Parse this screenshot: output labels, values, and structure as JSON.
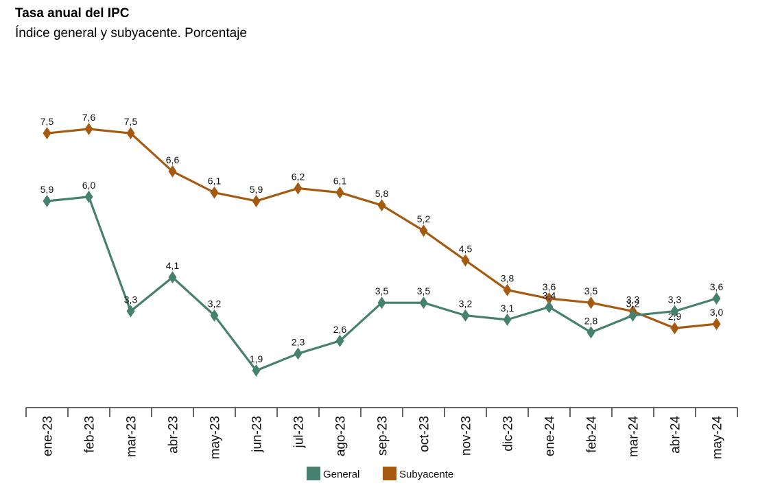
{
  "chart_data": {
    "type": "line",
    "title": "Tasa anual del IPC",
    "subtitle": "Índice general y subyacente. Porcentaje",
    "categories": [
      "ene-23",
      "feb-23",
      "mar-23",
      "abr-23",
      "may-23",
      "jun-23",
      "jul-23",
      "ago-23",
      "sep-23",
      "oct-23",
      "nov-23",
      "dic-23",
      "ene-24",
      "feb-24",
      "mar-24",
      "abr-24",
      "may-24"
    ],
    "series": [
      {
        "name": "General",
        "color": "#46806f",
        "values": [
          5.9,
          6.0,
          3.3,
          4.1,
          3.2,
          1.9,
          2.3,
          2.6,
          3.5,
          3.5,
          3.2,
          3.1,
          3.4,
          2.8,
          3.2,
          3.3,
          3.6
        ],
        "labels": [
          "5,9",
          "6,0",
          "3,3",
          "4,1",
          "3,2",
          "1,9",
          "2,3",
          "2,6",
          "3,5",
          "3,5",
          "3,2",
          "3,1",
          "3,4",
          "2,8",
          "3,2",
          "3,3",
          "3,6"
        ]
      },
      {
        "name": "Subyacente",
        "color": "#a65a0f",
        "values": [
          7.5,
          7.6,
          7.5,
          6.6,
          6.1,
          5.9,
          6.2,
          6.1,
          5.8,
          5.2,
          4.5,
          3.8,
          3.6,
          3.5,
          3.3,
          2.9,
          3.0
        ],
        "labels": [
          "7,5",
          "7,6",
          "7,5",
          "6,6",
          "6,1",
          "5,9",
          "6,2",
          "6,1",
          "5,8",
          "5,2",
          "4,5",
          "3,8",
          "3,6",
          "3,5",
          "3,3",
          "2,9",
          "3,0"
        ]
      }
    ],
    "ylim": [
      1.9,
      7.6
    ],
    "grid": false,
    "legend_position": "bottom-center",
    "xlabel": "",
    "ylabel": ""
  }
}
